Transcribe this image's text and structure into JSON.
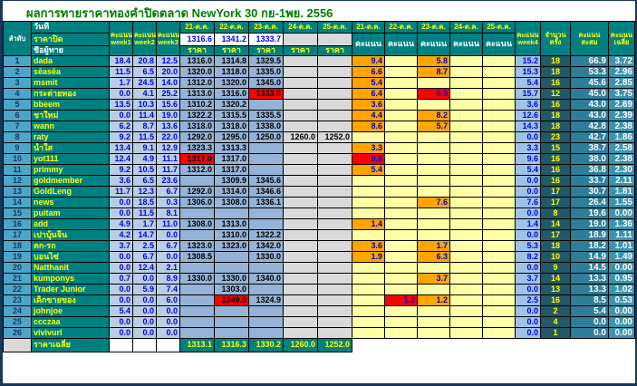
{
  "title": "ผลการทายราคาทองคำปิดตลาด NewYork 30 กย-1พย. 2556",
  "colors": {
    "title_green": "#007D00",
    "header_teal": "#008080",
    "frame_navy": "#17375D",
    "row_number_blue": "#4BA6C9",
    "week_cell": "#B9CDE5",
    "price_cell": "#95B3D7",
    "empty_gray": "#D9D9D9",
    "score_empty_yellow": "#FFFFA6",
    "score_filled_orange": "#FFA500",
    "best_score_red": "#FF0000",
    "week4_cell": "#9DC3E8",
    "count_cell": "#215967",
    "total_cell": "#2E7E99",
    "avg_cell": "#3A93B0",
    "name_yellow": "#FFFF00",
    "value_blue": "#0000E8"
  },
  "header": {
    "order_label": "ลำดับ",
    "date_label": "วันที่",
    "close_label": "ราคาปิด",
    "name_label": "ชื่อผู้ทาย",
    "week_headers": [
      "คะแนน week1",
      "คะแนน week2",
      "คะแนน week3"
    ],
    "price_dates": [
      "21-ต.ค.",
      "22-ต.ค.",
      "23-ต.ค.",
      "24-ต.ค.",
      "25-ต.ค."
    ],
    "close_prices": [
      "1316.6",
      "1341.2",
      "1333.7"
    ],
    "price_label": "ราคา",
    "score_dates": [
      "21-ต.ค.",
      "22-ต.ค.",
      "23-ต.ค.",
      "24-ต.ค.",
      "25-ต.ค."
    ],
    "score_label": "คะแนน",
    "week4_header": "คะแนน week4",
    "count_header": "จำนวนครั้ง",
    "total_header": "คะแนนสะสม",
    "avg_header": "คะแนนเฉลี่ย"
  },
  "rows": [
    {
      "no": "1",
      "name": "dada",
      "weeks": [
        "18.4",
        "20.8",
        "12.5"
      ],
      "prices": [
        "1316.0",
        "1314.8",
        "1329.5",
        "",
        ""
      ],
      "price_hl": [
        "",
        "",
        "",
        "",
        ""
      ],
      "scores": [
        "9.4",
        "",
        "5.8",
        "",
        ""
      ],
      "score_hl": [
        "o",
        "",
        "o",
        "",
        ""
      ],
      "week4": "15.2",
      "count": "18",
      "total": "66.9",
      "avg": "3.72"
    },
    {
      "no": "2",
      "name": "sēasēa",
      "weeks": [
        "11.5",
        "6.5",
        "20.0"
      ],
      "prices": [
        "1320.0",
        "1318.0",
        "1335.0",
        "",
        ""
      ],
      "price_hl": [
        "",
        "",
        "",
        "",
        ""
      ],
      "scores": [
        "6.6",
        "",
        "8.7",
        "",
        ""
      ],
      "score_hl": [
        "o",
        "",
        "o",
        "",
        ""
      ],
      "week4": "15.3",
      "count": "18",
      "total": "53.3",
      "avg": "2.96"
    },
    {
      "no": "3",
      "name": "msmit",
      "weeks": [
        "1.7",
        "24.5",
        "14.0"
      ],
      "prices": [
        "1312.0",
        "1320.0",
        "1345.0",
        "",
        ""
      ],
      "price_hl": [
        "",
        "",
        "",
        "",
        ""
      ],
      "scores": [
        "5.4",
        "",
        "",
        "",
        ""
      ],
      "score_hl": [
        "o",
        "",
        "",
        "",
        ""
      ],
      "week4": "5.4",
      "count": "16",
      "total": "45.6",
      "avg": "2.85"
    },
    {
      "no": "4",
      "name": "กระต่ายทอง",
      "weeks": [
        "0.0",
        "4.1",
        "25.2"
      ],
      "prices": [
        "1313.0",
        "1316.0",
        "1333.0",
        "",
        ""
      ],
      "price_hl": [
        "",
        "",
        "r",
        "",
        ""
      ],
      "scores": [
        "6.4",
        "",
        "9.3",
        "",
        ""
      ],
      "score_hl": [
        "o",
        "",
        "r",
        "",
        ""
      ],
      "week4": "15.7",
      "count": "12",
      "total": "45.0",
      "avg": "3.75"
    },
    {
      "no": "5",
      "name": "bbeem",
      "weeks": [
        "13.5",
        "10.3",
        "15.6"
      ],
      "prices": [
        "1310.2",
        "1320.2",
        "",
        "",
        ""
      ],
      "price_hl": [
        "",
        "",
        "",
        "",
        ""
      ],
      "scores": [
        "3.6",
        "",
        "",
        "",
        ""
      ],
      "score_hl": [
        "o",
        "",
        "",
        "",
        ""
      ],
      "week4": "3.6",
      "count": "16",
      "total": "43.0",
      "avg": "2.69"
    },
    {
      "no": "6",
      "name": "ชาใหม่",
      "weeks": [
        "0.0",
        "11.4",
        "19.0"
      ],
      "prices": [
        "1322.2",
        "1315.5",
        "1335.5",
        "",
        ""
      ],
      "price_hl": [
        "",
        "",
        "",
        "",
        ""
      ],
      "scores": [
        "4.4",
        "",
        "8.2",
        "",
        ""
      ],
      "score_hl": [
        "o",
        "",
        "o",
        "",
        ""
      ],
      "week4": "12.6",
      "count": "18",
      "total": "43.0",
      "avg": "2.39"
    },
    {
      "no": "7",
      "name": "wann",
      "weeks": [
        "6.2",
        "8.7",
        "13.6"
      ],
      "prices": [
        "1318.0",
        "1318.0",
        "1338.0",
        "",
        ""
      ],
      "price_hl": [
        "",
        "",
        "",
        "",
        ""
      ],
      "scores": [
        "8.6",
        "",
        "5.7",
        "",
        ""
      ],
      "score_hl": [
        "o",
        "",
        "o",
        "",
        ""
      ],
      "week4": "14.3",
      "count": "18",
      "total": "42.8",
      "avg": "2.38"
    },
    {
      "no": "8",
      "name": "raty",
      "weeks": [
        "9.2",
        "11.5",
        "22.0"
      ],
      "prices": [
        "1292.0",
        "1295.0",
        "1250.0",
        "1260.0",
        "1252.0"
      ],
      "price_hl": [
        "",
        "",
        "",
        "",
        ""
      ],
      "scores": [
        "",
        "",
        "",
        "",
        ""
      ],
      "score_hl": [
        "",
        "",
        "",
        "",
        ""
      ],
      "week4": "0.0",
      "count": "23",
      "total": "42.7",
      "avg": "1.86"
    },
    {
      "no": "9",
      "name": "น้ำใส",
      "weeks": [
        "13.4",
        "9.1",
        "12.9"
      ],
      "prices": [
        "1323.3",
        "1313.3",
        "",
        "",
        ""
      ],
      "price_hl": [
        "",
        "",
        "",
        "",
        ""
      ],
      "scores": [
        "3.3",
        "",
        "",
        "",
        ""
      ],
      "score_hl": [
        "o",
        "",
        "",
        "",
        ""
      ],
      "week4": "3.3",
      "count": "15",
      "total": "38.7",
      "avg": "2.58"
    },
    {
      "no": "10",
      "name": "yot111",
      "weeks": [
        "12.4",
        "4.9",
        "11.1"
      ],
      "prices": [
        "1317.0",
        "1317.0",
        "",
        "",
        ""
      ],
      "price_hl": [
        "r",
        "",
        "",
        "",
        ""
      ],
      "scores": [
        "9.6",
        "",
        "",
        "",
        ""
      ],
      "score_hl": [
        "r",
        "",
        "",
        "",
        ""
      ],
      "week4": "9.6",
      "count": "16",
      "total": "38.0",
      "avg": "2.38"
    },
    {
      "no": "11",
      "name": "primmy",
      "weeks": [
        "9.2",
        "10.5",
        "11.7"
      ],
      "prices": [
        "1312.0",
        "1317.0",
        "",
        "",
        ""
      ],
      "price_hl": [
        "",
        "",
        "",
        "",
        ""
      ],
      "scores": [
        "5.4",
        "",
        "",
        "",
        ""
      ],
      "score_hl": [
        "o",
        "",
        "",
        "",
        ""
      ],
      "week4": "5.4",
      "count": "16",
      "total": "36.8",
      "avg": "2.30"
    },
    {
      "no": "12",
      "name": "goldmember",
      "weeks": [
        "3.6",
        "6.5",
        "23.6"
      ],
      "prices": [
        "",
        "1309.9",
        "1345.6",
        "",
        ""
      ],
      "price_hl": [
        "",
        "",
        "",
        "",
        ""
      ],
      "scores": [
        "",
        "",
        "",
        "",
        ""
      ],
      "score_hl": [
        "",
        "",
        "",
        "",
        ""
      ],
      "week4": "0.0",
      "count": "16",
      "total": "33.7",
      "avg": "2.11"
    },
    {
      "no": "13",
      "name": "GoldLeng",
      "weeks": [
        "11.7",
        "12.3",
        "6.7"
      ],
      "prices": [
        "1292.0",
        "1314.0",
        "1346.6",
        "",
        ""
      ],
      "price_hl": [
        "",
        "",
        "",
        "",
        ""
      ],
      "scores": [
        "",
        "",
        "",
        "",
        ""
      ],
      "score_hl": [
        "",
        "",
        "",
        "",
        ""
      ],
      "week4": "0.0",
      "count": "17",
      "total": "30.7",
      "avg": "1.81"
    },
    {
      "no": "14",
      "name": "news",
      "weeks": [
        "0.0",
        "18.5",
        "0.3"
      ],
      "prices": [
        "1306.0",
        "1308.0",
        "1336.1",
        "",
        ""
      ],
      "price_hl": [
        "",
        "",
        "",
        "",
        ""
      ],
      "scores": [
        "",
        "",
        "7.6",
        "",
        ""
      ],
      "score_hl": [
        "",
        "",
        "o",
        "",
        ""
      ],
      "week4": "7.6",
      "count": "17",
      "total": "26.4",
      "avg": "1.55"
    },
    {
      "no": "15",
      "name": "puitam",
      "weeks": [
        "0.0",
        "11.5",
        "8.1"
      ],
      "prices": [
        "",
        "",
        "",
        "",
        ""
      ],
      "price_hl": [
        "",
        "",
        "",
        "",
        ""
      ],
      "scores": [
        "",
        "",
        "",
        "",
        ""
      ],
      "score_hl": [
        "",
        "",
        "",
        "",
        ""
      ],
      "week4": "0.0",
      "count": "8",
      "total": "19.6",
      "avg": "0.00"
    },
    {
      "no": "16",
      "name": "add",
      "weeks": [
        "4.9",
        "1.7",
        "11.0"
      ],
      "prices": [
        "1308.0",
        "1313.0",
        "",
        "",
        ""
      ],
      "price_hl": [
        "",
        "",
        "",
        "",
        ""
      ],
      "scores": [
        "1.4",
        "",
        "",
        "",
        ""
      ],
      "score_hl": [
        "o",
        "",
        "",
        "",
        ""
      ],
      "week4": "1.4",
      "count": "14",
      "total": "19.0",
      "avg": "1.36"
    },
    {
      "no": "17",
      "name": "เปาบุ้นจิ้น",
      "weeks": [
        "4.2",
        "14.7",
        "0.0"
      ],
      "prices": [
        "",
        "1310.0",
        "1322.2",
        "",
        ""
      ],
      "price_hl": [
        "",
        "",
        "",
        "",
        ""
      ],
      "scores": [
        "",
        "",
        "",
        "",
        ""
      ],
      "score_hl": [
        "",
        "",
        "",
        "",
        ""
      ],
      "week4": "0.0",
      "count": "17",
      "total": "18.9",
      "avg": "1.11"
    },
    {
      "no": "18",
      "name": "ตก-รถ",
      "weeks": [
        "3.7",
        "2.5",
        "6.7"
      ],
      "prices": [
        "1323.0",
        "1323.0",
        "1342.0",
        "",
        ""
      ],
      "price_hl": [
        "",
        "",
        "",
        "",
        ""
      ],
      "scores": [
        "3.6",
        "",
        "1.7",
        "",
        ""
      ],
      "score_hl": [
        "o",
        "",
        "o",
        "",
        ""
      ],
      "week4": "5.3",
      "count": "18",
      "total": "18.2",
      "avg": "1.01"
    },
    {
      "no": "19",
      "name": "บอนไซ่",
      "weeks": [
        "0.0",
        "6.7",
        "0.0"
      ],
      "prices": [
        "1308.5",
        "",
        "1330.0",
        "",
        ""
      ],
      "price_hl": [
        "",
        "",
        "",
        "",
        ""
      ],
      "scores": [
        "1.9",
        "",
        "6.3",
        "",
        ""
      ],
      "score_hl": [
        "o",
        "",
        "o",
        "",
        ""
      ],
      "week4": "8.2",
      "count": "10",
      "total": "14.9",
      "avg": "1.49"
    },
    {
      "no": "20",
      "name": "Natthanit",
      "weeks": [
        "0.0",
        "12.4",
        "2.1"
      ],
      "prices": [
        "",
        "",
        "",
        "",
        ""
      ],
      "price_hl": [
        "",
        "",
        "",
        "",
        ""
      ],
      "scores": [
        "",
        "",
        "",
        "",
        ""
      ],
      "score_hl": [
        "",
        "",
        "",
        "",
        ""
      ],
      "week4": "0.0",
      "count": "9",
      "total": "14.5",
      "avg": "0.00"
    },
    {
      "no": "21",
      "name": "kumponys",
      "weeks": [
        "0.7",
        "0.0",
        "8.9"
      ],
      "prices": [
        "1330.0",
        "1330.0",
        "1340.0",
        "",
        ""
      ],
      "price_hl": [
        "",
        "",
        "",
        "",
        ""
      ],
      "scores": [
        "",
        "",
        "3.7",
        "",
        ""
      ],
      "score_hl": [
        "",
        "",
        "o",
        "",
        ""
      ],
      "week4": "3.7",
      "count": "14",
      "total": "13.3",
      "avg": "0.95"
    },
    {
      "no": "22",
      "name": "Trader Junior",
      "weeks": [
        "0.0",
        "5.9",
        "7.4"
      ],
      "prices": [
        "",
        "1303.0",
        "",
        "",
        ""
      ],
      "price_hl": [
        "",
        "",
        "",
        "",
        ""
      ],
      "scores": [
        "",
        "",
        "",
        "",
        ""
      ],
      "score_hl": [
        "",
        "",
        "",
        "",
        ""
      ],
      "week4": "0.0",
      "count": "13",
      "total": "13.3",
      "avg": "1.02"
    },
    {
      "no": "23",
      "name": "เด็กขายของ",
      "weeks": [
        "0.0",
        "0.0",
        "6.0"
      ],
      "prices": [
        "",
        "1349.9",
        "1324.9",
        "",
        ""
      ],
      "price_hl": [
        "",
        "r",
        "",
        "",
        ""
      ],
      "scores": [
        "",
        "1.3",
        "1.2",
        "",
        ""
      ],
      "score_hl": [
        "",
        "r",
        "o",
        "",
        ""
      ],
      "week4": "2.5",
      "count": "16",
      "total": "8.5",
      "avg": "0.53"
    },
    {
      "no": "24",
      "name": "johnjoe",
      "weeks": [
        "5.4",
        "0.0",
        "0.0"
      ],
      "prices": [
        "",
        "",
        "",
        "",
        ""
      ],
      "price_hl": [
        "",
        "",
        "",
        "",
        ""
      ],
      "scores": [
        "",
        "",
        "",
        "",
        ""
      ],
      "score_hl": [
        "",
        "",
        "",
        "",
        ""
      ],
      "week4": "0.0",
      "count": "2",
      "total": "5.4",
      "avg": "0.00"
    },
    {
      "no": "25",
      "name": "ccczaa",
      "weeks": [
        "0.0",
        "0.0",
        "0.0"
      ],
      "prices": [
        "",
        "",
        "",
        "",
        ""
      ],
      "price_hl": [
        "",
        "",
        "",
        "",
        ""
      ],
      "scores": [
        "",
        "",
        "",
        "",
        ""
      ],
      "score_hl": [
        "",
        "",
        "",
        "",
        ""
      ],
      "week4": "0.0",
      "count": "4",
      "total": "0.0",
      "avg": "0.00"
    },
    {
      "no": "26",
      "name": "vivivurl",
      "weeks": [
        "0.0",
        "0.0",
        "0.0"
      ],
      "prices": [
        "",
        "",
        "",
        "",
        ""
      ],
      "price_hl": [
        "",
        "",
        "",
        "",
        ""
      ],
      "scores": [
        "",
        "",
        "",
        "",
        ""
      ],
      "score_hl": [
        "",
        "",
        "",
        "",
        ""
      ],
      "week4": "0.0",
      "count": "1",
      "total": "0.0",
      "avg": "0.00"
    }
  ],
  "footer": {
    "label": "ราคาเฉลี่ย",
    "values": [
      "1313.1",
      "1316.3",
      "1330.2",
      "1260.0",
      "1252.0"
    ]
  }
}
